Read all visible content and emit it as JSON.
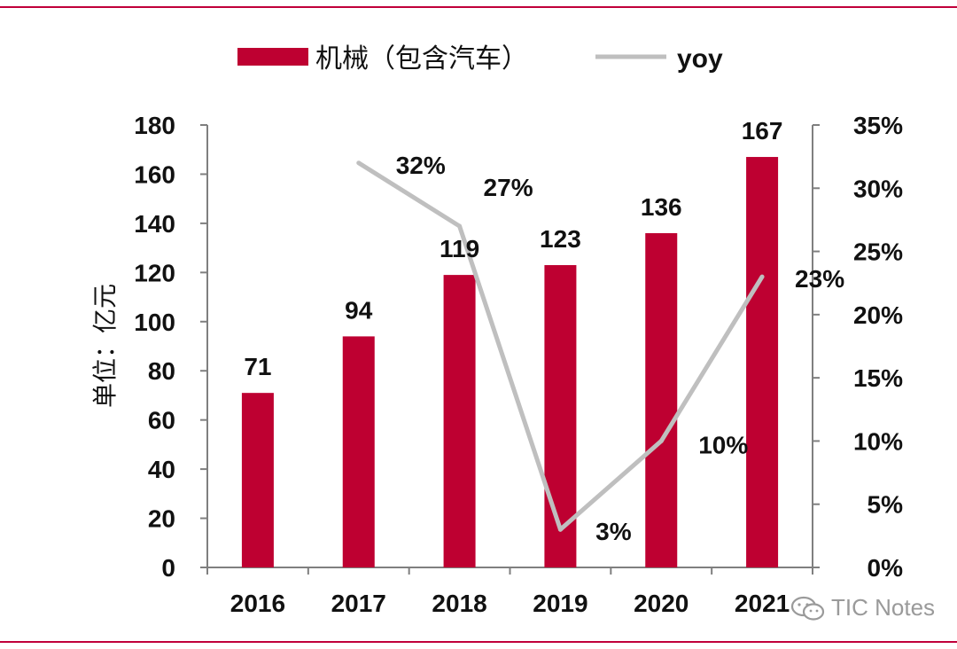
{
  "colors": {
    "bar": "#BE0031",
    "line": "#BFBFBF",
    "frame": "#C0003A",
    "axis": "#7F7F7F",
    "text": "#111111"
  },
  "watermark": {
    "icon": "wechat-icon",
    "text": "TIC Notes"
  },
  "chart_data": {
    "type": "bar+line",
    "categories": [
      "2016",
      "2017",
      "2018",
      "2019",
      "2020",
      "2021"
    ],
    "series": [
      {
        "name": "机械（包含汽车）",
        "type": "bar",
        "axis": "left",
        "values": [
          71,
          94,
          119,
          123,
          136,
          167
        ],
        "labels": [
          "71",
          "94",
          "119",
          "123",
          "136",
          "167"
        ]
      },
      {
        "name": "yoy",
        "type": "line",
        "axis": "right",
        "x": [
          "2017",
          "2018",
          "2019",
          "2020",
          "2021"
        ],
        "values": [
          0.32,
          0.27,
          0.03,
          0.1,
          0.23
        ],
        "labels": [
          "32%",
          "27%",
          "3%",
          "10%",
          "23%"
        ]
      }
    ],
    "y_left": {
      "label": "单位：亿元",
      "min": 0,
      "max": 180,
      "step": 20,
      "ticks": [
        "0",
        "20",
        "40",
        "60",
        "80",
        "100",
        "120",
        "140",
        "160",
        "180"
      ]
    },
    "y_right": {
      "min": 0,
      "max": 0.35,
      "step": 0.05,
      "ticks": [
        "0%",
        "5%",
        "10%",
        "15%",
        "20%",
        "25%",
        "30%",
        "35%"
      ]
    },
    "legend": {
      "position": "top",
      "entries": [
        "机械（包含汽车）",
        "yoy"
      ]
    },
    "grid": false
  }
}
